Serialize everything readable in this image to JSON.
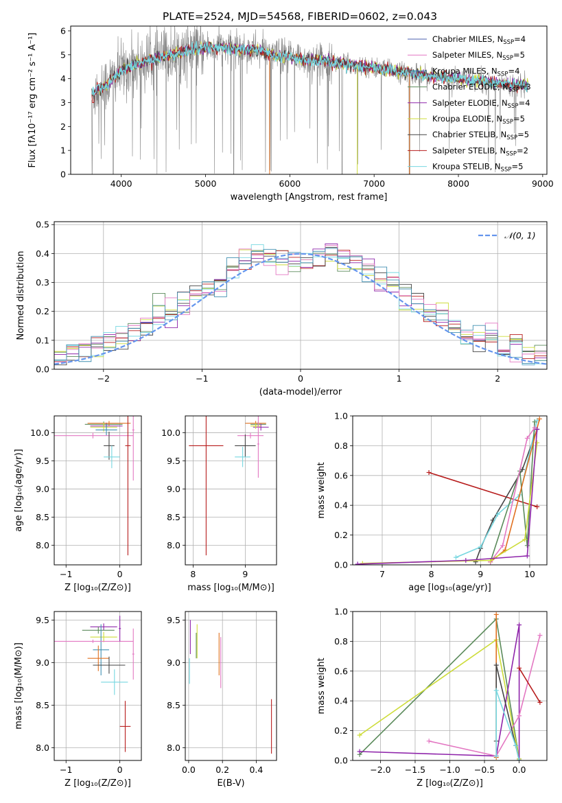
{
  "figure": {
    "title": "PLATE=2524, MJD=54568, FIBERID=0602, z=0.043"
  },
  "colors": {
    "chabrier_miles": "#4a5fae",
    "salpeter_miles": "#e377c2",
    "kroupa_miles": "#3f8fb0",
    "chabrier_elodie": "#5a8a5a",
    "salpeter_elodie": "#8e24aa",
    "kroupa_elodie": "#cddc39",
    "chabrier_stelib": "#444444",
    "salpeter_stelib": "#b71c1c",
    "kroupa_stelib": "#76d7e0",
    "data": "#7f7f7f",
    "orange": "#e07020",
    "normal_curve": "#6495ed"
  },
  "chart_data": [
    {
      "id": "spectrum",
      "type": "line",
      "xlabel": "wavelength [Angstrom, rest frame]",
      "ylabel": "Flux [fλ10⁻¹⁷ erg cm⁻² s⁻¹ A⁻¹]",
      "xlim": [
        3400,
        9050
      ],
      "ylim": [
        0,
        6.2
      ],
      "xticks": [
        4000,
        5000,
        6000,
        7000,
        8000,
        9000
      ],
      "yticks": [
        0,
        1,
        2,
        3,
        4,
        5,
        6
      ],
      "grid": false,
      "legend_position": "top-right",
      "legend": [
        {
          "main": "Chabrier MILES, N",
          "sub": "SSP",
          "val": "=4",
          "color": "chabrier_miles"
        },
        {
          "main": "Salpeter MILES, N",
          "sub": "SSP",
          "val": "=5",
          "color": "salpeter_miles"
        },
        {
          "main": "Kroupa MILES, N",
          "sub": "SSP",
          "val": "=4",
          "color": "kroupa_miles"
        },
        {
          "main": "Chabrier ELODIE, N",
          "sub": "SSP",
          "val": "=3",
          "color": "chabrier_elodie"
        },
        {
          "main": "Salpeter ELODIE, N",
          "sub": "SSP",
          "val": "=4",
          "color": "salpeter_elodie"
        },
        {
          "main": "Kroupa ELODIE, N",
          "sub": "SSP",
          "val": "=5",
          "color": "kroupa_elodie"
        },
        {
          "main": "Chabrier STELIB, N",
          "sub": "SSP",
          "val": "=5",
          "color": "chabrier_stelib"
        },
        {
          "main": "Salpeter STELIB, N",
          "sub": "SSP",
          "val": "=2",
          "color": "salpeter_stelib"
        },
        {
          "main": "Kroupa STELIB, N",
          "sub": "SSP",
          "val": "=5",
          "color": "kroupa_stelib"
        }
      ],
      "continuum": [
        [
          3650,
          3.3
        ],
        [
          3700,
          3.5
        ],
        [
          3800,
          3.7
        ],
        [
          3900,
          4.0
        ],
        [
          4000,
          4.3
        ],
        [
          4100,
          4.5
        ],
        [
          4200,
          4.65
        ],
        [
          4300,
          4.7
        ],
        [
          4500,
          4.9
        ],
        [
          4700,
          5.1
        ],
        [
          4800,
          5.2
        ],
        [
          5000,
          5.3
        ],
        [
          5200,
          5.3
        ],
        [
          5400,
          5.25
        ],
        [
          5600,
          5.2
        ],
        [
          5800,
          5.0
        ],
        [
          6000,
          4.9
        ],
        [
          6200,
          4.8
        ],
        [
          6400,
          4.75
        ],
        [
          6600,
          4.65
        ],
        [
          6800,
          4.55
        ],
        [
          7000,
          4.45
        ],
        [
          7200,
          4.35
        ],
        [
          7400,
          4.25
        ],
        [
          7600,
          4.15
        ],
        [
          7800,
          4.05
        ],
        [
          8000,
          3.98
        ],
        [
          8200,
          3.9
        ],
        [
          8400,
          3.83
        ],
        [
          8600,
          3.78
        ],
        [
          8800,
          3.73
        ]
      ]
    },
    {
      "id": "residuals",
      "type": "histogram",
      "xlabel": "(data-model)/error",
      "ylabel": "Normed distribution",
      "xlim": [
        -2.5,
        2.5
      ],
      "ylim": [
        0,
        0.51
      ],
      "xticks": [
        -2,
        -1,
        0,
        1,
        2
      ],
      "yticks": [
        0.0,
        0.1,
        0.2,
        0.3,
        0.4,
        0.5
      ],
      "grid": true,
      "legend_position": "top-right",
      "legend_label": "𝒩(0, 1)",
      "bins_range": [
        -2.5,
        2.5
      ],
      "n_bins": 40
    },
    {
      "id": "age-z",
      "type": "scatter",
      "xlabel": "Z [log₁₀(Z/Z⊙)]",
      "ylabel": "age  [log₁₀(age/yr)]",
      "xlim": [
        -1.22,
        0.4
      ],
      "ylim": [
        7.65,
        10.3
      ],
      "xticks": [
        -1,
        0
      ],
      "yticks": [
        8.0,
        8.5,
        9.0,
        9.5,
        10.0
      ],
      "grid": true,
      "points": [
        {
          "x": -0.3,
          "y": 10.15,
          "ex": 0.35,
          "ey": 0.05,
          "color": "chabrier_elodie"
        },
        {
          "x": -0.25,
          "y": 10.12,
          "ex": 0.3,
          "ey": 0.06,
          "color": "salpeter_elodie"
        },
        {
          "x": -0.2,
          "y": 10.17,
          "ex": 0.4,
          "ey": 0.04,
          "color": "orange"
        },
        {
          "x": -0.3,
          "y": 10.1,
          "ex": 0.25,
          "ey": 0.08,
          "color": "kroupa_elodie"
        },
        {
          "x": -0.25,
          "y": 10.05,
          "ex": 0.2,
          "ey": 0.1,
          "color": "kroupa_miles"
        },
        {
          "x": -0.5,
          "y": 9.95,
          "ex": 0.75,
          "ey": 0.05,
          "color": "salpeter_miles"
        },
        {
          "x": -0.2,
          "y": 9.77,
          "ex": 0.1,
          "ey": 0.25,
          "color": "chabrier_stelib"
        },
        {
          "x": -0.15,
          "y": 9.57,
          "ex": 0.15,
          "ey": 0.2,
          "color": "kroupa_stelib"
        },
        {
          "x": 0.15,
          "y": 9.77,
          "ex": 0.05,
          "ey": 1.95,
          "color": "salpeter_stelib"
        },
        {
          "x": 0.25,
          "y": 10.05,
          "ex": 0.02,
          "ey": 0.9,
          "color": "salpeter_miles"
        }
      ]
    },
    {
      "id": "age-mass",
      "type": "scatter",
      "xlabel": "mass [log₁₀(M/M⊙)]",
      "ylabel": "",
      "xlim": [
        7.85,
        9.6
      ],
      "ylim": [
        7.65,
        10.3
      ],
      "xticks": [
        8,
        9
      ],
      "yticks": [
        8.0,
        8.5,
        9.0,
        9.5,
        10.0
      ],
      "grid": true,
      "points": [
        {
          "x": 9.2,
          "y": 10.17,
          "ex": 0.2,
          "ey": 0.04,
          "color": "orange"
        },
        {
          "x": 9.25,
          "y": 10.15,
          "ex": 0.15,
          "ey": 0.05,
          "color": "chabrier_elodie"
        },
        {
          "x": 9.3,
          "y": 10.1,
          "ex": 0.15,
          "ey": 0.06,
          "color": "salpeter_elodie"
        },
        {
          "x": 9.2,
          "y": 10.12,
          "ex": 0.1,
          "ey": 0.05,
          "color": "kroupa_elodie"
        },
        {
          "x": 9.1,
          "y": 9.95,
          "ex": 0.25,
          "ey": 0.05,
          "color": "salpeter_miles"
        },
        {
          "x": 9.0,
          "y": 9.77,
          "ex": 0.2,
          "ey": 0.2,
          "color": "chabrier_stelib"
        },
        {
          "x": 8.95,
          "y": 9.57,
          "ex": 0.15,
          "ey": 0.18,
          "color": "kroupa_stelib"
        },
        {
          "x": 8.25,
          "y": 9.77,
          "ex": 0.33,
          "ey": 1.95,
          "color": "salpeter_stelib"
        },
        {
          "x": 9.25,
          "y": 9.8,
          "ex": 0.02,
          "ey": 0.6,
          "color": "salpeter_miles"
        }
      ]
    },
    {
      "id": "massweight-age",
      "type": "line",
      "xlabel": "age  [log₁₀(age/yr)]",
      "ylabel": "mass weight",
      "xlim": [
        6.4,
        10.35
      ],
      "ylim": [
        0,
        1.0
      ],
      "xticks": [
        7,
        8,
        9,
        10
      ],
      "yticks": [
        0.0,
        0.2,
        0.4,
        0.6,
        0.8,
        1.0
      ],
      "grid": true,
      "series": [
        {
          "color": "salpeter_stelib",
          "x": [
            7.95,
            10.15
          ],
          "y": [
            0.62,
            0.39
          ]
        },
        {
          "color": "chabrier_stelib",
          "x": [
            8.9,
            9.0,
            9.25,
            9.85,
            10.15
          ],
          "y": [
            0.02,
            0.11,
            0.3,
            0.64,
            0.91
          ]
        },
        {
          "color": "kroupa_stelib",
          "x": [
            8.5,
            9.0,
            9.35,
            9.8,
            10.15
          ],
          "y": [
            0.05,
            0.12,
            0.34,
            0.47,
            0.97
          ]
        },
        {
          "color": "chabrier_elodie",
          "x": [
            9.2,
            9.8,
            9.95,
            10.1
          ],
          "y": [
            0.02,
            0.63,
            0.13,
            0.96
          ]
        },
        {
          "color": "orange",
          "x": [
            9.2,
            9.5,
            10.2
          ],
          "y": [
            0.02,
            0.1,
            0.98
          ]
        },
        {
          "color": "salpeter_miles",
          "x": [
            9.2,
            9.45,
            9.95,
            10.1
          ],
          "y": [
            0.02,
            0.13,
            0.85,
            0.92
          ]
        },
        {
          "color": "kroupa_elodie",
          "x": [
            6.6,
            9.2,
            9.9,
            10.15
          ],
          "y": [
            0.01,
            0.03,
            0.17,
            0.82
          ]
        },
        {
          "color": "salpeter_elodie",
          "x": [
            6.5,
            8.7,
            9.95,
            10.15
          ],
          "y": [
            0.005,
            0.03,
            0.06,
            0.91
          ]
        }
      ]
    },
    {
      "id": "mass-z",
      "type": "scatter",
      "xlabel": "Z [log₁₀(Z/Z⊙)]",
      "ylabel": "mass [log₁₀(M/M⊙)]",
      "xlim": [
        -1.22,
        0.4
      ],
      "ylim": [
        7.85,
        9.6
      ],
      "xticks": [
        -1,
        0
      ],
      "yticks": [
        8.0,
        8.5,
        9.0,
        9.5
      ],
      "grid": true,
      "points": [
        {
          "x": -0.3,
          "y": 9.42,
          "ex": 0.25,
          "ey": 0.04,
          "color": "salpeter_elodie"
        },
        {
          "x": -0.4,
          "y": 9.38,
          "ex": 0.3,
          "ey": 0.04,
          "color": "chabrier_elodie"
        },
        {
          "x": -0.3,
          "y": 9.3,
          "ex": 0.25,
          "ey": 0.06,
          "color": "kroupa_elodie"
        },
        {
          "x": -0.35,
          "y": 9.15,
          "ex": 0.15,
          "ey": 0.3,
          "color": "kroupa_miles"
        },
        {
          "x": -0.4,
          "y": 9.05,
          "ex": 0.2,
          "ey": 0.15,
          "color": "orange"
        },
        {
          "x": -0.5,
          "y": 9.25,
          "ex": 0.75,
          "ey": 0.02,
          "color": "salpeter_miles"
        },
        {
          "x": -0.2,
          "y": 8.97,
          "ex": 0.3,
          "ey": 0.1,
          "color": "chabrier_stelib"
        },
        {
          "x": -0.1,
          "y": 8.77,
          "ex": 0.25,
          "ey": 0.15,
          "color": "kroupa_stelib"
        },
        {
          "x": 0.1,
          "y": 8.25,
          "ex": 0.1,
          "ey": 0.3,
          "color": "salpeter_stelib"
        },
        {
          "x": -0.0,
          "y": 9.4,
          "ex": 0.02,
          "ey": 0.15,
          "color": "salpeter_elodie"
        },
        {
          "x": 0.25,
          "y": 9.1,
          "ex": 0.02,
          "ey": 0.3,
          "color": "salpeter_miles"
        }
      ]
    },
    {
      "id": "mass-ebv",
      "type": "scatter",
      "xlabel": "E(B-V)",
      "ylabel": "",
      "xlim": [
        -0.02,
        0.52
      ],
      "ylim": [
        7.85,
        9.6
      ],
      "xticks": [
        0.0,
        0.2,
        0.4
      ],
      "yticks": [
        8.0,
        8.5,
        9.0,
        9.5
      ],
      "grid": true,
      "points": [
        {
          "x": 0.01,
          "y": 9.3,
          "ex": 0,
          "ey": 0.2,
          "color": "salpeter_elodie"
        },
        {
          "x": 0.005,
          "y": 8.9,
          "ex": 0,
          "ey": 0.15,
          "color": "kroupa_stelib"
        },
        {
          "x": 0.045,
          "y": 9.2,
          "ex": 0,
          "ey": 0.15,
          "color": "chabrier_elodie"
        },
        {
          "x": 0.05,
          "y": 9.25,
          "ex": 0,
          "ey": 0.2,
          "color": "kroupa_elodie"
        },
        {
          "x": 0.18,
          "y": 9.1,
          "ex": 0,
          "ey": 0.25,
          "color": "orange"
        },
        {
          "x": 0.19,
          "y": 9.0,
          "ex": 0,
          "ey": 0.3,
          "color": "salpeter_miles"
        },
        {
          "x": 0.49,
          "y": 8.25,
          "ex": 0,
          "ey": 0.32,
          "color": "salpeter_stelib"
        }
      ]
    },
    {
      "id": "massweight-z",
      "type": "line",
      "xlabel": "Z [log₁₀(Z/Z⊙)]",
      "ylabel": "mass weight",
      "xlim": [
        -2.4,
        0.4
      ],
      "ylim": [
        0,
        1.0
      ],
      "xticks": [
        -2.0,
        -1.5,
        -1.0,
        -0.5,
        0.0
      ],
      "yticks": [
        0.0,
        0.2,
        0.4,
        0.6,
        0.8,
        1.0
      ],
      "grid": true,
      "series": [
        {
          "color": "chabrier_elodie",
          "x": [
            -2.3,
            -0.33,
            0.0
          ],
          "y": [
            0.04,
            0.95,
            0.01
          ]
        },
        {
          "color": "kroupa_elodie",
          "x": [
            -2.3,
            -0.33,
            0.0
          ],
          "y": [
            0.17,
            0.81,
            0.01
          ]
        },
        {
          "color": "salpeter_elodie",
          "x": [
            -2.3,
            -0.33,
            0.0,
            0.0
          ],
          "y": [
            0.06,
            0.03,
            0.91,
            0.0
          ]
        },
        {
          "color": "salpeter_miles",
          "x": [
            -1.3,
            -0.33,
            0.0,
            0.3
          ],
          "y": [
            0.13,
            0.03,
            0.3,
            0.84
          ]
        },
        {
          "color": "orange",
          "x": [
            -0.33,
            -0.33
          ],
          "y": [
            0.02,
            0.98
          ]
        },
        {
          "color": "chabrier_stelib",
          "x": [
            -0.33,
            -0.33,
            -0.05,
            0.0
          ],
          "y": [
            0.13,
            0.64,
            0.1,
            0.0
          ]
        },
        {
          "color": "kroupa_stelib",
          "x": [
            -0.33,
            -0.33,
            -0.05,
            0.0
          ],
          "y": [
            0.03,
            0.47,
            0.1,
            0.0
          ]
        },
        {
          "color": "salpeter_stelib",
          "x": [
            0.0,
            0.3
          ],
          "y": [
            0.62,
            0.39
          ]
        }
      ]
    }
  ]
}
